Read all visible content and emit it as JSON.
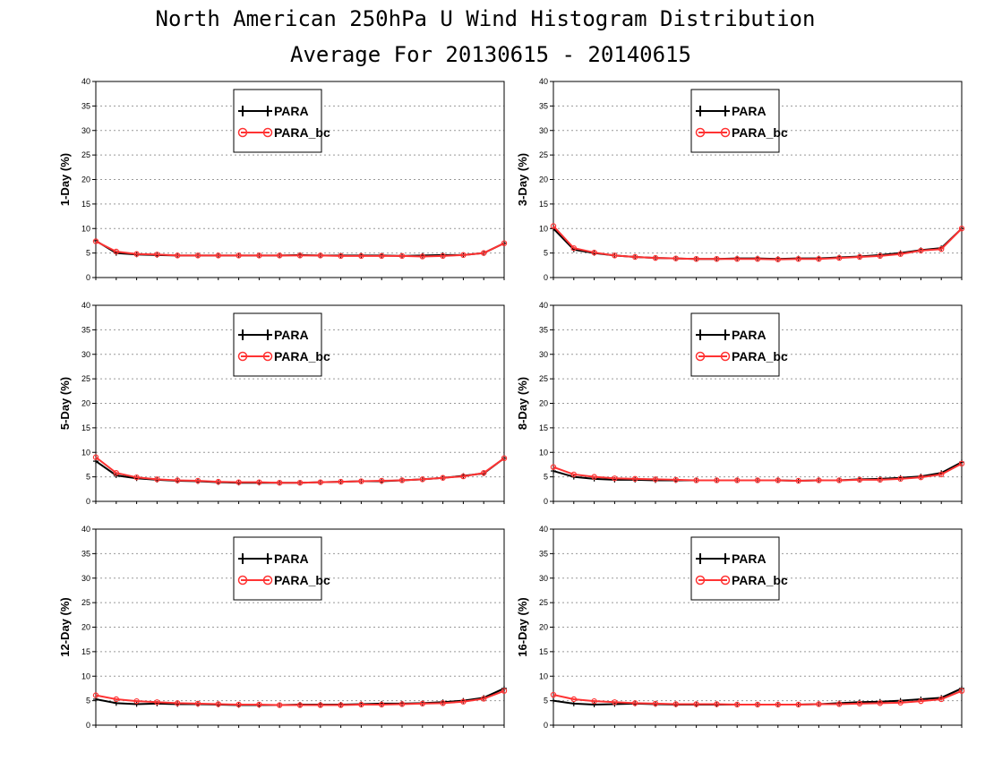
{
  "title": "North American 250hPa U Wind Histogram Distribution",
  "subtitle": "Average For 20130615 - 20140615",
  "colors": {
    "PARA": "#000000",
    "PARA_bc": "#ff3333",
    "grid": "#999999"
  },
  "chart_data": [
    {
      "type": "line",
      "ylabel": "1-Day (%)",
      "ylim": [
        0,
        40
      ],
      "yticks": [
        0,
        5,
        10,
        15,
        20,
        25,
        30,
        35,
        40
      ],
      "x": [
        1,
        2,
        3,
        4,
        5,
        6,
        7,
        8,
        9,
        10,
        11,
        12,
        13,
        14,
        15,
        16,
        17,
        18,
        19,
        20,
        21
      ],
      "grid": true,
      "legend": "upper-center-left",
      "series": [
        {
          "name": "PARA",
          "marker": "plus",
          "values": [
            7.5,
            5.0,
            4.7,
            4.6,
            4.5,
            4.5,
            4.5,
            4.5,
            4.5,
            4.5,
            4.6,
            4.5,
            4.5,
            4.5,
            4.5,
            4.4,
            4.5,
            4.6,
            4.6,
            5.0,
            7.0
          ]
        },
        {
          "name": "PARA_bc",
          "marker": "circle",
          "values": [
            7.4,
            5.3,
            4.8,
            4.7,
            4.5,
            4.5,
            4.5,
            4.5,
            4.5,
            4.5,
            4.5,
            4.5,
            4.4,
            4.4,
            4.4,
            4.4,
            4.3,
            4.4,
            4.6,
            5.0,
            7.0
          ]
        }
      ]
    },
    {
      "type": "line",
      "ylabel": "3-Day (%)",
      "ylim": [
        0,
        40
      ],
      "yticks": [
        0,
        5,
        10,
        15,
        20,
        25,
        30,
        35,
        40
      ],
      "x": [
        1,
        2,
        3,
        4,
        5,
        6,
        7,
        8,
        9,
        10,
        11,
        12,
        13,
        14,
        15,
        16,
        17,
        18,
        19,
        20,
        21
      ],
      "grid": true,
      "legend": "upper-center-left",
      "series": [
        {
          "name": "PARA",
          "marker": "plus",
          "values": [
            10.0,
            5.7,
            5.0,
            4.5,
            4.2,
            4.0,
            3.9,
            3.8,
            3.8,
            3.9,
            3.9,
            3.8,
            3.9,
            3.9,
            4.1,
            4.3,
            4.6,
            5.0,
            5.6,
            6.0,
            10.0
          ]
        },
        {
          "name": "PARA_bc",
          "marker": "circle",
          "values": [
            10.5,
            6.0,
            5.1,
            4.5,
            4.2,
            4.0,
            3.9,
            3.8,
            3.8,
            3.8,
            3.8,
            3.7,
            3.8,
            3.8,
            4.0,
            4.2,
            4.4,
            4.8,
            5.5,
            5.8,
            10.0
          ]
        }
      ]
    },
    {
      "type": "line",
      "ylabel": "5-Day (%)",
      "ylim": [
        0,
        40
      ],
      "yticks": [
        0,
        5,
        10,
        15,
        20,
        25,
        30,
        35,
        40
      ],
      "x": [
        1,
        2,
        3,
        4,
        5,
        6,
        7,
        8,
        9,
        10,
        11,
        12,
        13,
        14,
        15,
        16,
        17,
        18,
        19,
        20,
        21
      ],
      "grid": true,
      "legend": "upper-center-left",
      "series": [
        {
          "name": "PARA",
          "marker": "plus",
          "values": [
            8.2,
            5.3,
            4.7,
            4.4,
            4.2,
            4.1,
            3.9,
            3.8,
            3.8,
            3.8,
            3.8,
            3.9,
            4.0,
            4.1,
            4.1,
            4.3,
            4.5,
            4.8,
            5.2,
            5.7,
            8.8
          ]
        },
        {
          "name": "PARA_bc",
          "marker": "circle",
          "values": [
            9.0,
            5.8,
            4.9,
            4.5,
            4.3,
            4.2,
            4.0,
            3.9,
            3.9,
            3.8,
            3.8,
            3.9,
            4.0,
            4.1,
            4.2,
            4.3,
            4.5,
            4.8,
            5.1,
            5.8,
            8.8
          ]
        }
      ]
    },
    {
      "type": "line",
      "ylabel": "8-Day (%)",
      "ylim": [
        0,
        40
      ],
      "yticks": [
        0,
        5,
        10,
        15,
        20,
        25,
        30,
        35,
        40
      ],
      "x": [
        1,
        2,
        3,
        4,
        5,
        6,
        7,
        8,
        9,
        10,
        11,
        12,
        13,
        14,
        15,
        16,
        17,
        18,
        19,
        20,
        21
      ],
      "grid": true,
      "legend": "upper-center-left",
      "series": [
        {
          "name": "PARA",
          "marker": "plus",
          "values": [
            6.2,
            5.0,
            4.6,
            4.4,
            4.4,
            4.3,
            4.3,
            4.3,
            4.3,
            4.3,
            4.3,
            4.3,
            4.2,
            4.3,
            4.3,
            4.5,
            4.6,
            4.8,
            5.1,
            5.8,
            8.0
          ]
        },
        {
          "name": "PARA_bc",
          "marker": "circle",
          "values": [
            7.0,
            5.5,
            5.0,
            4.7,
            4.6,
            4.5,
            4.4,
            4.3,
            4.3,
            4.3,
            4.3,
            4.3,
            4.2,
            4.3,
            4.3,
            4.4,
            4.4,
            4.6,
            4.9,
            5.5,
            7.7
          ]
        }
      ]
    },
    {
      "type": "line",
      "ylabel": "12-Day (%)",
      "ylim": [
        0,
        40
      ],
      "yticks": [
        0,
        5,
        10,
        15,
        20,
        25,
        30,
        35,
        40
      ],
      "x": [
        1,
        2,
        3,
        4,
        5,
        6,
        7,
        8,
        9,
        10,
        11,
        12,
        13,
        14,
        15,
        16,
        17,
        18,
        19,
        20,
        21
      ],
      "grid": true,
      "legend": "upper-center-left",
      "series": [
        {
          "name": "PARA",
          "marker": "plus",
          "values": [
            5.3,
            4.5,
            4.3,
            4.4,
            4.3,
            4.3,
            4.2,
            4.1,
            4.1,
            4.1,
            4.2,
            4.2,
            4.2,
            4.3,
            4.4,
            4.4,
            4.5,
            4.7,
            5.0,
            5.6,
            7.5
          ]
        },
        {
          "name": "PARA_bc",
          "marker": "circle",
          "values": [
            6.1,
            5.3,
            4.9,
            4.7,
            4.5,
            4.4,
            4.3,
            4.2,
            4.2,
            4.1,
            4.1,
            4.1,
            4.1,
            4.2,
            4.2,
            4.3,
            4.4,
            4.5,
            4.8,
            5.4,
            7.0
          ]
        }
      ]
    },
    {
      "type": "line",
      "ylabel": "16-Day (%)",
      "ylim": [
        0,
        40
      ],
      "yticks": [
        0,
        5,
        10,
        15,
        20,
        25,
        30,
        35,
        40
      ],
      "x": [
        1,
        2,
        3,
        4,
        5,
        6,
        7,
        8,
        9,
        10,
        11,
        12,
        13,
        14,
        15,
        16,
        17,
        18,
        19,
        20,
        21
      ],
      "grid": true,
      "legend": "upper-center-left",
      "series": [
        {
          "name": "PARA",
          "marker": "plus",
          "values": [
            5.0,
            4.4,
            4.2,
            4.3,
            4.4,
            4.3,
            4.2,
            4.2,
            4.2,
            4.2,
            4.2,
            4.2,
            4.2,
            4.3,
            4.5,
            4.7,
            4.8,
            5.0,
            5.3,
            5.6,
            7.5
          ]
        },
        {
          "name": "PARA_bc",
          "marker": "circle",
          "values": [
            6.2,
            5.3,
            4.9,
            4.7,
            4.5,
            4.4,
            4.3,
            4.3,
            4.3,
            4.2,
            4.2,
            4.2,
            4.2,
            4.3,
            4.3,
            4.4,
            4.5,
            4.6,
            4.9,
            5.3,
            7.0
          ]
        }
      ]
    }
  ]
}
